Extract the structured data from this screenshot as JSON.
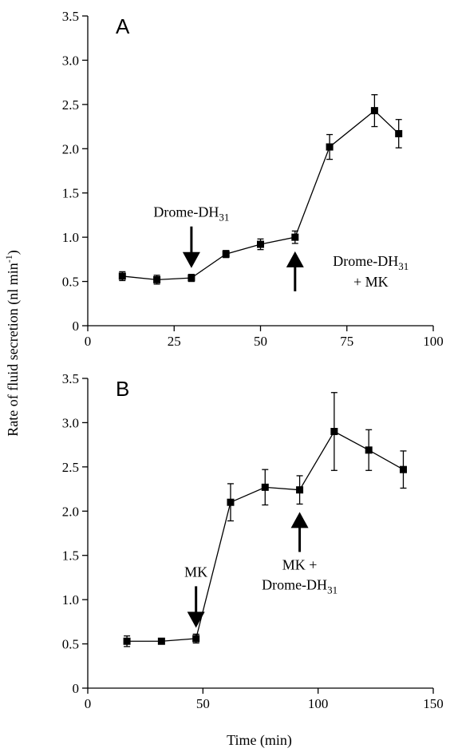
{
  "chart_data": [
    {
      "type": "line",
      "panel_label": "A",
      "x": [
        10,
        20,
        30,
        40,
        50,
        60,
        70,
        83,
        90
      ],
      "series": [
        {
          "values": [
            0.56,
            0.52,
            0.54,
            0.81,
            0.92,
            1.0,
            2.02,
            2.43,
            2.17
          ],
          "errors": [
            0.05,
            0.05,
            0.04,
            0.04,
            0.06,
            0.07,
            0.14,
            0.18,
            0.16
          ]
        }
      ],
      "xlim": [
        0,
        100
      ],
      "ylim": [
        0,
        3.5
      ],
      "xticks": [
        "0",
        "25",
        "50",
        "75",
        "100"
      ],
      "yticks": [
        "0",
        "0.5",
        "1.0",
        "1.5",
        "2.0",
        "2.5",
        "3.0",
        "3.5"
      ],
      "annotations": [
        {
          "text": "Drome-DH",
          "sub": "31",
          "arrow": "down",
          "x": 30
        },
        {
          "text": "Drome-DH",
          "sub": "31",
          "line2": "+ MK",
          "arrow": "up",
          "x": 60
        }
      ]
    },
    {
      "type": "line",
      "panel_label": "B",
      "x": [
        17,
        32,
        47,
        62,
        77,
        92,
        107,
        122,
        137
      ],
      "series": [
        {
          "values": [
            0.53,
            0.53,
            0.56,
            2.1,
            2.27,
            2.24,
            2.9,
            2.69,
            2.47
          ],
          "errors": [
            0.06,
            0.03,
            0.05,
            0.21,
            0.2,
            0.16,
            0.44,
            0.23,
            0.21
          ]
        }
      ],
      "xlim": [
        0,
        150
      ],
      "ylim": [
        0,
        3.5
      ],
      "xticks": [
        "0",
        "50",
        "100",
        "150"
      ],
      "yticks": [
        "0",
        "0.5",
        "1.0",
        "1.5",
        "2.0",
        "2.5",
        "3.0",
        "3.5"
      ],
      "annotations": [
        {
          "text": "MK",
          "arrow": "down",
          "x": 47
        },
        {
          "text": "MK +",
          "line2": "Drome-DH",
          "line2_sub": "31",
          "arrow": "up",
          "x": 92
        }
      ]
    }
  ],
  "ylabel": "Rate of fluid secretion (nl min",
  "ylabel_sup": "-1",
  "ylabel_end": ")",
  "xlabel": "Time (min)"
}
